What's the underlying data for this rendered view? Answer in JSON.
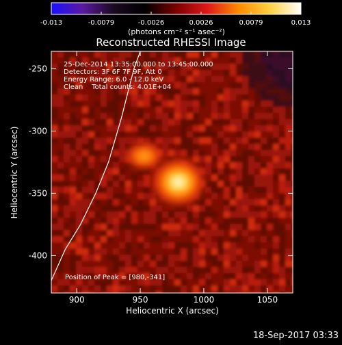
{
  "colorbar": {
    "ticks": [
      "-0.013",
      "-0.0079",
      "-0.0026",
      "0.0026",
      "0.0079",
      "0.013"
    ],
    "units": "(photons cm⁻² s⁻¹ asec⁻²)",
    "colormap": [
      "#1a10ff",
      "#5a1aa0",
      "#1a0a20",
      "#000000",
      "#7a0000",
      "#e01818",
      "#ff8a00",
      "#ffd040",
      "#ffffff"
    ]
  },
  "chart_data": {
    "type": "heatmap",
    "title": "Reconstructed RHESSI Image",
    "xlabel": "Heliocentric X (arcsec)",
    "ylabel": "Heliocentric Y (arcsec)",
    "xlim": [
      880,
      1070
    ],
    "ylim": [
      -430,
      -236
    ],
    "xticks": [
      "900",
      "950",
      "1000",
      "1050"
    ],
    "yticks": [
      "-250",
      "-300",
      "-350",
      "-400"
    ],
    "xtick_values": [
      900,
      950,
      1000,
      1050
    ],
    "ytick_values": [
      -250,
      -300,
      -350,
      -400
    ],
    "annotations": [
      "25-Dec-2014 13:35:00.000 to 13:45:00.000",
      "Detectors: 3F 6F 7F 9F, Att 0",
      "Energy Range: 6.0 - 12.0 keV",
      "Clean    Total counts: 4.01E+04"
    ],
    "peak_label": "Position of Peak = [980,-341]",
    "peak": [
      980,
      -341
    ],
    "sources": [
      {
        "x": 980,
        "y": -341,
        "intensity": 0.013
      },
      {
        "x": 953,
        "y": -320,
        "intensity": 0.0085
      }
    ],
    "limb": [
      [
        880,
        -420
      ],
      [
        891,
        -395
      ],
      [
        903,
        -375
      ],
      [
        915,
        -350
      ],
      [
        925,
        -325
      ],
      [
        935,
        -290
      ],
      [
        945,
        -250
      ],
      [
        950,
        -236
      ]
    ]
  },
  "footer": {
    "timestamp": "18-Sep-2017 03:33"
  }
}
